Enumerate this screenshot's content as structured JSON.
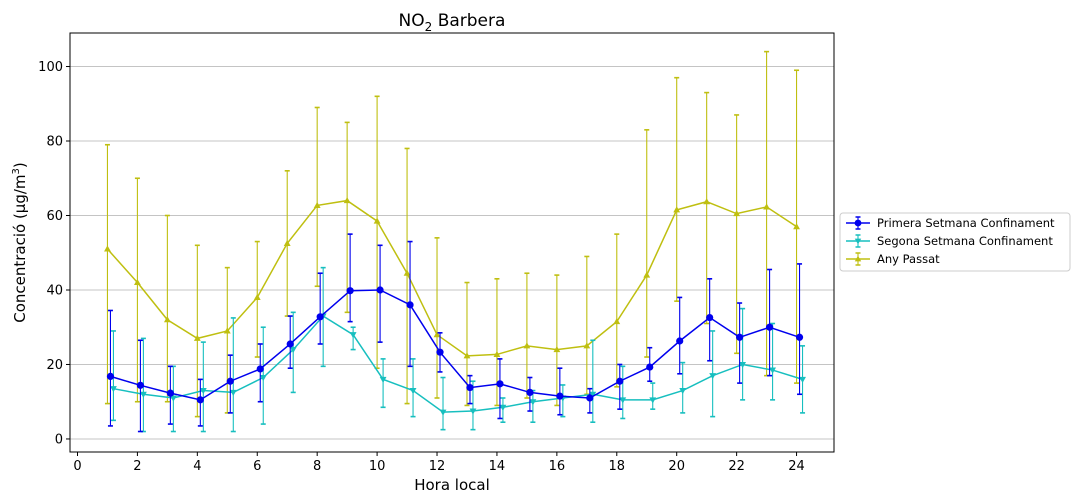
{
  "chart_data": {
    "type": "line",
    "title": "NO",
    "title_subscript": "2",
    "title_suffix": " Barbera",
    "xlabel": "Hora local",
    "ylabel": "Concentració (µg/m",
    "ylabel_sup": "3",
    "ylabel_end": ")",
    "xlim": [
      -0.25,
      25.25
    ],
    "ylim": [
      -3.5,
      109
    ],
    "xticks": [
      0,
      2,
      4,
      6,
      8,
      10,
      12,
      14,
      16,
      18,
      20,
      22,
      24
    ],
    "yticks": [
      0,
      20,
      40,
      60,
      80,
      100
    ],
    "grid": "horizontal",
    "legend_position": "right",
    "series": [
      {
        "name": "Primera Setmana Confinament",
        "color": "#0000ee",
        "marker": "circle",
        "x_offset": 0.1,
        "x": [
          1,
          2,
          3,
          4,
          5,
          6,
          7,
          8,
          9,
          10,
          11,
          12,
          13,
          14,
          15,
          16,
          17,
          18,
          19,
          20,
          21,
          22,
          23,
          24
        ],
        "y": [
          16.8,
          14.4,
          12.3,
          10.5,
          15.5,
          18.8,
          25.5,
          32.8,
          39.8,
          40.0,
          36.0,
          23.3,
          13.8,
          14.8,
          12.5,
          11.5,
          11.0,
          15.5,
          19.3,
          26.3,
          32.6,
          27.3,
          30.0,
          27.3
        ],
        "err_low": [
          3.5,
          2.0,
          4.0,
          3.5,
          7.0,
          10.0,
          19.0,
          25.5,
          31.5,
          26.0,
          19.5,
          18.0,
          9.5,
          5.5,
          7.5,
          6.5,
          7.0,
          8.0,
          15.5,
          17.5,
          21.0,
          15.0,
          17.0,
          12.0
        ],
        "err_high": [
          34.5,
          26.5,
          19.5,
          16.0,
          22.5,
          25.5,
          33.0,
          44.5,
          55.0,
          52.0,
          53.0,
          28.5,
          17.0,
          21.5,
          16.5,
          19.0,
          13.5,
          20.0,
          24.5,
          38.0,
          43.0,
          36.5,
          45.5,
          47.0
        ]
      },
      {
        "name": "Segona Setmana Confinament",
        "color": "#17bfbf",
        "marker": "triangle-down",
        "x_offset": 0.2,
        "x": [
          1,
          2,
          3,
          4,
          5,
          6,
          7,
          8,
          9,
          10,
          11,
          12,
          13,
          14,
          15,
          16,
          17,
          18,
          19,
          20,
          21,
          22,
          23,
          24
        ],
        "y": [
          13.5,
          12.0,
          11.0,
          13.0,
          12.5,
          16.5,
          24.0,
          33.0,
          28.0,
          16.0,
          13.0,
          7.2,
          7.5,
          8.5,
          10.0,
          11.0,
          12.0,
          10.5,
          10.5,
          13.0,
          17.0,
          20.0,
          18.5,
          16.0
        ],
        "err_low": [
          5.0,
          2.0,
          2.0,
          2.0,
          2.0,
          4.0,
          12.5,
          19.5,
          24.0,
          8.5,
          6.0,
          2.5,
          2.5,
          4.5,
          4.5,
          6.0,
          4.5,
          5.5,
          8.0,
          7.0,
          6.0,
          10.5,
          10.5,
          7.0
        ],
        "err_high": [
          29.0,
          27.0,
          19.5,
          26.0,
          32.5,
          30.0,
          34.0,
          46.0,
          30.0,
          21.5,
          21.5,
          16.5,
          15.5,
          11.0,
          13.0,
          14.5,
          26.5,
          19.5,
          15.0,
          20.5,
          29.0,
          35.0,
          31.0,
          25.0
        ]
      },
      {
        "name": "Any Passat",
        "color": "#bfbf10",
        "marker": "triangle-up",
        "x_offset": 0.0,
        "x": [
          1,
          2,
          3,
          4,
          5,
          6,
          7,
          8,
          9,
          10,
          11,
          12,
          13,
          14,
          15,
          16,
          17,
          18,
          19,
          20,
          21,
          22,
          23,
          24
        ],
        "y": [
          51.0,
          42.0,
          32.0,
          27.0,
          29.0,
          38.0,
          52.5,
          62.7,
          64.0,
          58.5,
          44.5,
          28.0,
          22.3,
          22.7,
          25.0,
          24.0,
          25.0,
          31.5,
          44.0,
          61.5,
          63.7,
          60.5,
          62.3,
          57.0
        ],
        "err_low": [
          9.5,
          10.0,
          10.0,
          6.0,
          7.0,
          22.0,
          33.0,
          41.0,
          34.0,
          19.0,
          9.5,
          11.0,
          9.0,
          9.0,
          11.0,
          9.0,
          12.0,
          14.0,
          22.0,
          37.0,
          31.0,
          23.0,
          17.0,
          15.0
        ],
        "err_high": [
          79.0,
          70.0,
          60.0,
          52.0,
          46.0,
          53.0,
          72.0,
          89.0,
          85.0,
          92.0,
          78.0,
          54.0,
          42.0,
          43.0,
          44.5,
          44.0,
          49.0,
          55.0,
          83.0,
          97.0,
          93.0,
          87.0,
          104.0,
          99.0
        ]
      }
    ]
  }
}
